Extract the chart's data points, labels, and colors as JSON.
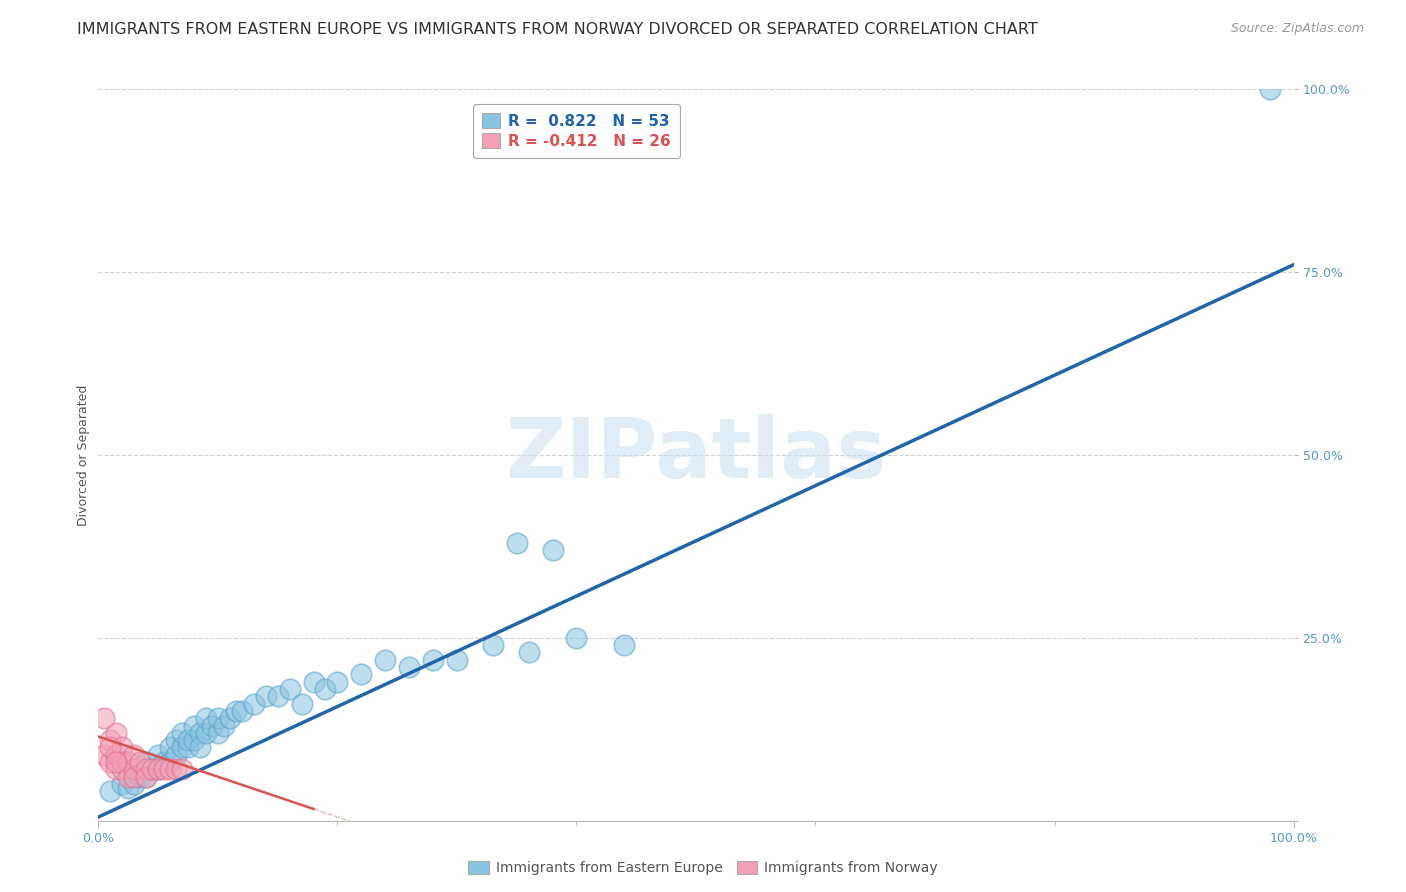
{
  "title": "IMMIGRANTS FROM EASTERN EUROPE VS IMMIGRANTS FROM NORWAY DIVORCED OR SEPARATED CORRELATION CHART",
  "source": "Source: ZipAtlas.com",
  "ylabel": "Divorced or Separated",
  "xlim": [
    0,
    1.0
  ],
  "ylim": [
    0,
    1.0
  ],
  "y_tick_positions": [
    0.0,
    0.25,
    0.5,
    0.75,
    1.0
  ],
  "y_tick_labels": [
    "",
    "25.0%",
    "50.0%",
    "75.0%",
    "100.0%"
  ],
  "x_tick_major": [
    0.0,
    1.0
  ],
  "x_tick_minor": [
    0.2,
    0.4,
    0.6,
    0.8
  ],
  "watermark_text": "ZIPatlas",
  "legend_blue_label": "R =  0.822   N = 53",
  "legend_pink_label": "R = -0.412   N = 26",
  "bottom_legend_blue": "Immigrants from Eastern Europe",
  "bottom_legend_pink": "Immigrants from Norway",
  "blue_color": "#89c4e1",
  "blue_edge_color": "#5ba3c9",
  "blue_line_color": "#2166ac",
  "pink_color": "#f4a0b5",
  "pink_edge_color": "#e07090",
  "pink_line_color": "#d9534f",
  "background_color": "#ffffff",
  "grid_color": "#cccccc",
  "tick_color": "#5599cc",
  "blue_slope": 0.755,
  "blue_intercept": 0.005,
  "pink_slope": -0.55,
  "pink_intercept": 0.115,
  "pink_line_x_end": 0.18,
  "blue_points_x": [
    0.01,
    0.02,
    0.025,
    0.03,
    0.03,
    0.035,
    0.04,
    0.04,
    0.045,
    0.05,
    0.05,
    0.055,
    0.06,
    0.06,
    0.065,
    0.065,
    0.07,
    0.07,
    0.075,
    0.075,
    0.08,
    0.08,
    0.085,
    0.085,
    0.09,
    0.09,
    0.095,
    0.1,
    0.1,
    0.105,
    0.11,
    0.115,
    0.12,
    0.13,
    0.14,
    0.15,
    0.16,
    0.17,
    0.18,
    0.19,
    0.2,
    0.22,
    0.24,
    0.26,
    0.28,
    0.3,
    0.33,
    0.36,
    0.4,
    0.44,
    0.35,
    0.38,
    0.98
  ],
  "blue_points_y": [
    0.04,
    0.05,
    0.045,
    0.05,
    0.07,
    0.06,
    0.06,
    0.08,
    0.07,
    0.07,
    0.09,
    0.08,
    0.08,
    0.1,
    0.09,
    0.11,
    0.1,
    0.12,
    0.1,
    0.11,
    0.11,
    0.13,
    0.12,
    0.1,
    0.12,
    0.14,
    0.13,
    0.12,
    0.14,
    0.13,
    0.14,
    0.15,
    0.15,
    0.16,
    0.17,
    0.17,
    0.18,
    0.16,
    0.19,
    0.18,
    0.19,
    0.2,
    0.22,
    0.21,
    0.22,
    0.22,
    0.24,
    0.23,
    0.25,
    0.24,
    0.38,
    0.37,
    1.0
  ],
  "pink_points_x": [
    0.005,
    0.01,
    0.01,
    0.015,
    0.015,
    0.015,
    0.02,
    0.02,
    0.02,
    0.025,
    0.025,
    0.03,
    0.03,
    0.03,
    0.035,
    0.04,
    0.04,
    0.045,
    0.05,
    0.055,
    0.06,
    0.065,
    0.07,
    0.005,
    0.01,
    0.015
  ],
  "pink_points_y": [
    0.09,
    0.08,
    0.11,
    0.07,
    0.09,
    0.12,
    0.07,
    0.1,
    0.08,
    0.08,
    0.06,
    0.07,
    0.09,
    0.06,
    0.08,
    0.07,
    0.06,
    0.07,
    0.07,
    0.07,
    0.07,
    0.07,
    0.07,
    0.14,
    0.1,
    0.08
  ],
  "title_fontsize": 11.5,
  "source_fontsize": 9,
  "axis_label_fontsize": 9,
  "tick_fontsize": 9,
  "legend_fontsize": 11,
  "watermark_fontsize": 60
}
